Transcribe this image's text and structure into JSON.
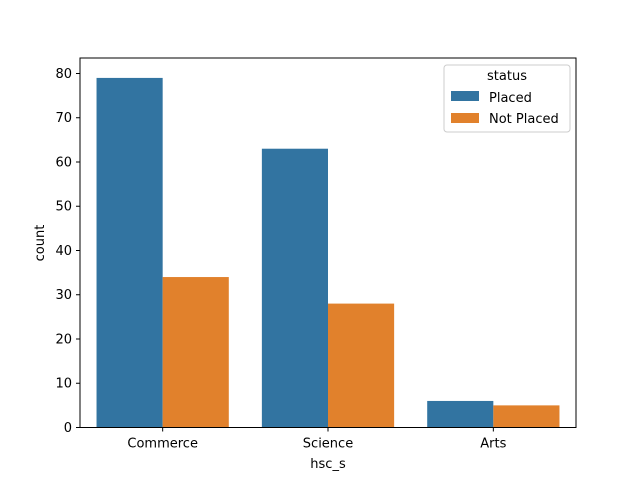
{
  "chart_data": {
    "type": "bar",
    "title": "",
    "xlabel": "hsc_s",
    "ylabel": "count",
    "categories": [
      "Commerce",
      "Science",
      "Arts"
    ],
    "series": [
      {
        "name": "Placed",
        "values": [
          79,
          63,
          6
        ],
        "color": "#3274a1"
      },
      {
        "name": "Not Placed",
        "values": [
          34,
          28,
          5
        ],
        "color": "#e1812c"
      }
    ],
    "ylim": [
      0,
      83.5
    ],
    "yticks": [
      0,
      10,
      20,
      30,
      40,
      50,
      60,
      70,
      80
    ],
    "grid": false,
    "legend": {
      "title": "status",
      "placement": "top-right"
    }
  }
}
